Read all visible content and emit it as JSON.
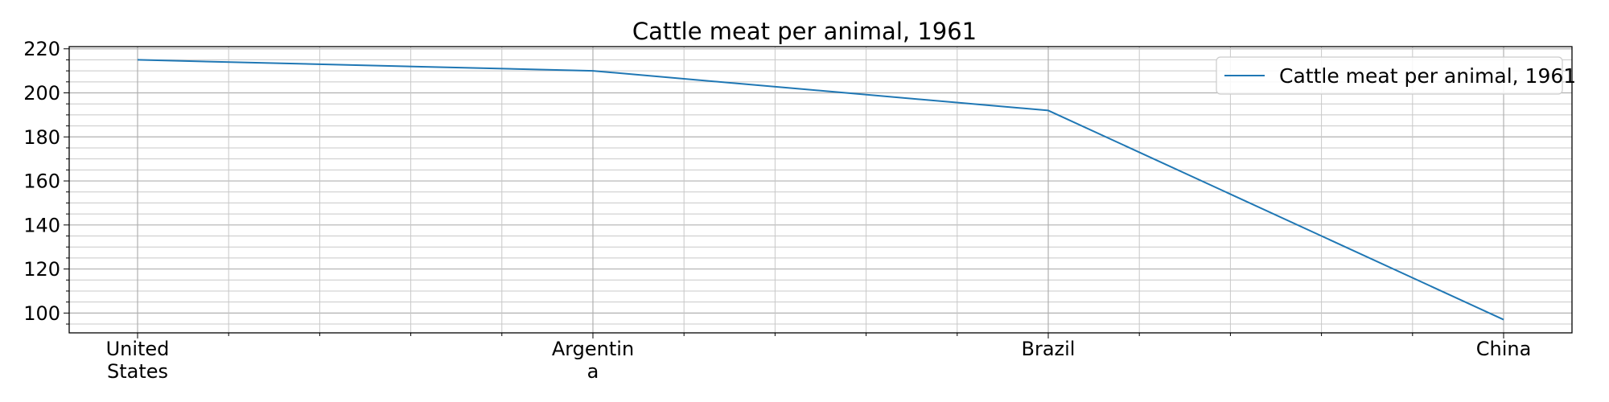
{
  "chart_data": {
    "type": "line",
    "title": "Cattle meat per animal, 1961",
    "xlabel": "",
    "ylabel": "",
    "categories": [
      "United States",
      "Argentina",
      "Brazil",
      "China"
    ],
    "category_label_lines": [
      [
        "United",
        "States"
      ],
      [
        "Argentin",
        "a"
      ],
      [
        "Brazil"
      ],
      [
        "China"
      ]
    ],
    "series": [
      {
        "name": "Cattle meat per animal, 1961",
        "values": [
          215,
          210,
          192,
          97
        ],
        "color": "#1f77b4"
      }
    ],
    "ylim": [
      91,
      221
    ],
    "yticks": [
      100,
      120,
      140,
      160,
      180,
      200,
      220
    ],
    "grid": true,
    "minor_grid": true,
    "legend_position": "top-right"
  }
}
